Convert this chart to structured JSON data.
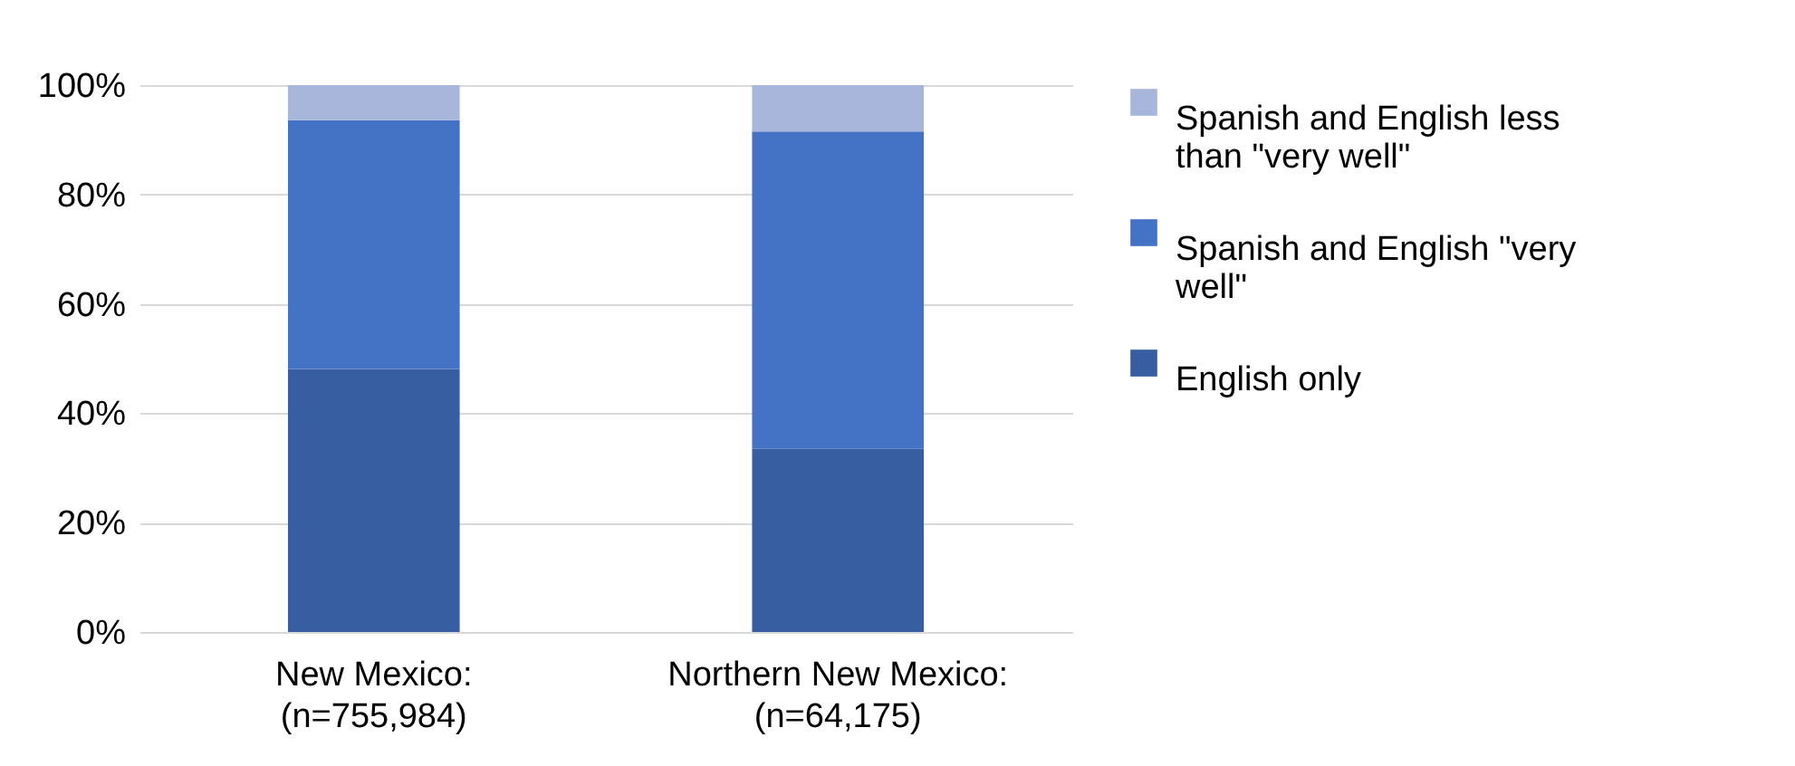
{
  "chart_data": {
    "type": "bar",
    "stacked": true,
    "categories": [
      "New Mexico:\n(n=755,984)",
      "Northern New Mexico:\n(n=64,175)"
    ],
    "series": [
      {
        "name": "English only",
        "color": "#375ea1",
        "values": [
          48.1,
          33.5
        ]
      },
      {
        "name": "Spanish and English \"very well\"",
        "color": "#4472c4",
        "values": [
          45.5,
          58.0
        ]
      },
      {
        "name": "Spanish and English less than \"very well\"",
        "color": "#a9b6dc",
        "values": [
          6.4,
          8.5
        ]
      }
    ],
    "ylim": [
      0,
      100
    ],
    "yticks": [
      {
        "value": 0,
        "label": "0%"
      },
      {
        "value": 20,
        "label": "20%"
      },
      {
        "value": 40,
        "label": "40%"
      },
      {
        "value": 60,
        "label": "60%"
      },
      {
        "value": 80,
        "label": "80%"
      },
      {
        "value": 100,
        "label": "100%"
      }
    ],
    "grid": "y",
    "legend": "right"
  }
}
